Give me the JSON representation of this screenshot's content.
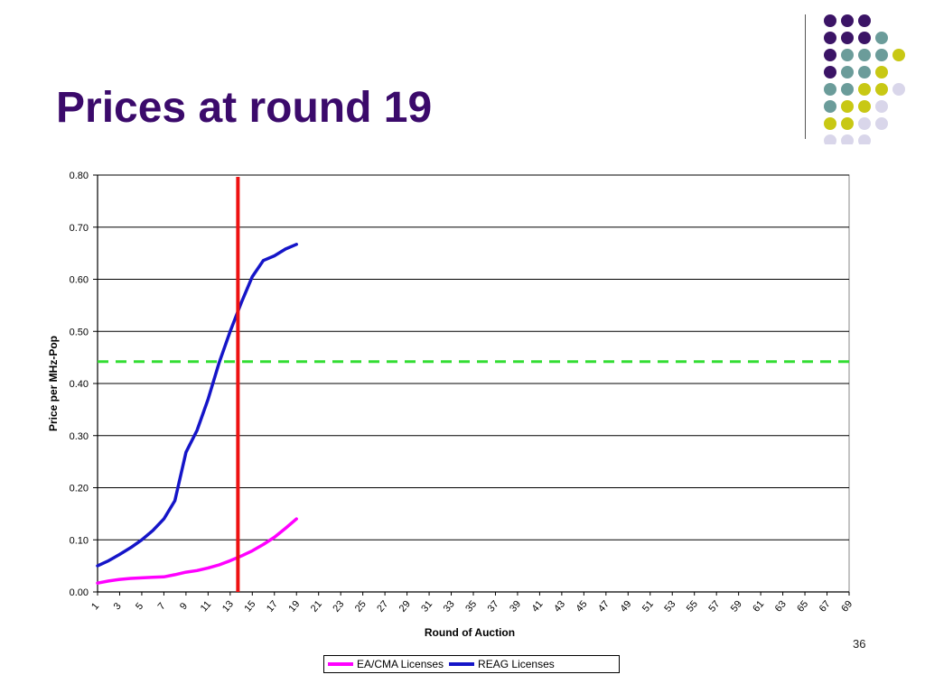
{
  "slide": {
    "title": "Prices at round 19",
    "page_number": "36",
    "decor_colors": {
      "purple": "#3b1466",
      "teal": "#6b9c9a",
      "olive": "#c8c814",
      "lavender": "#d9d6ea"
    }
  },
  "chart_data": {
    "type": "line",
    "title": "",
    "xlabel": "Round of Auction",
    "ylabel": "Price per MHz-Pop",
    "xlim": [
      1,
      69
    ],
    "ylim": [
      0,
      0.8
    ],
    "x_ticks": [
      "1",
      "3",
      "5",
      "7",
      "9",
      "11",
      "13",
      "15",
      "17",
      "19",
      "21",
      "23",
      "25",
      "27",
      "29",
      "31",
      "33",
      "35",
      "37",
      "39",
      "41",
      "43",
      "45",
      "47",
      "49",
      "51",
      "53",
      "55",
      "57",
      "59",
      "61",
      "63",
      "65",
      "67",
      "69"
    ],
    "y_ticks": [
      "0.00",
      "0.10",
      "0.20",
      "0.30",
      "0.40",
      "0.50",
      "0.60",
      "0.70",
      "0.80"
    ],
    "grid": "horizontal",
    "legend_position": "bottom",
    "series": [
      {
        "name": "EA/CMA Licenses",
        "color": "#ff00ff",
        "x": [
          1,
          2,
          3,
          4,
          5,
          6,
          7,
          8,
          9,
          10,
          11,
          12,
          13,
          14,
          15,
          16,
          17,
          18,
          19
        ],
        "y": [
          0.017,
          0.021,
          0.024,
          0.026,
          0.027,
          0.028,
          0.029,
          0.033,
          0.038,
          0.041,
          0.046,
          0.052,
          0.06,
          0.069,
          0.079,
          0.091,
          0.105,
          0.122,
          0.14
        ]
      },
      {
        "name": "REAG Licenses",
        "color": "#1515c8",
        "x": [
          1,
          2,
          3,
          4,
          5,
          6,
          7,
          8,
          9,
          10,
          11,
          12,
          13,
          14,
          15,
          16,
          17,
          18,
          19
        ],
        "y": [
          0.05,
          0.06,
          0.072,
          0.085,
          0.1,
          0.118,
          0.14,
          0.175,
          0.268,
          0.31,
          0.37,
          0.44,
          0.5,
          0.555,
          0.605,
          0.636,
          0.645,
          0.658,
          0.667
        ]
      }
    ],
    "annotations": [
      {
        "type": "vertical-line",
        "x": 13.7,
        "color": "#ee1111"
      },
      {
        "type": "horizontal-dashed-line",
        "y": 0.442,
        "color": "#33dd33"
      }
    ]
  }
}
